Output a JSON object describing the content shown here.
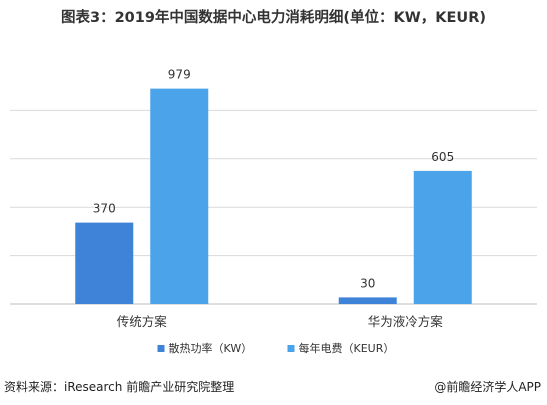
{
  "title": "图表3：2019年中国数据中心电力消耗明细(单位：KW，KEUR)",
  "source": "资料来源：iResearch 前瞻产业研究院整理",
  "brand": "@前瞻经济学人APP",
  "colors": {
    "series1": "#3F83D9",
    "series2": "#4BA3EA",
    "gridline": "#d9d9d9",
    "axis": "#bfbfbf"
  },
  "chart_data": {
    "type": "bar",
    "title": "图表3：2019年中国数据中心电力消耗明细(单位：KW，KEUR)",
    "categories": [
      "传统方案",
      "华为液冷方案"
    ],
    "series": [
      {
        "name": "散热功率（KW）",
        "values": [
          370,
          30
        ]
      },
      {
        "name": "每年电费（KEUR）",
        "values": [
          979,
          605
        ]
      }
    ],
    "ylim": [
      0,
      1100
    ],
    "y_gridlines": [
      0,
      220,
      440,
      660,
      880
    ],
    "y_ticks_visible": false,
    "grid": true,
    "legend": "bottom",
    "xlabel": "",
    "ylabel": ""
  }
}
